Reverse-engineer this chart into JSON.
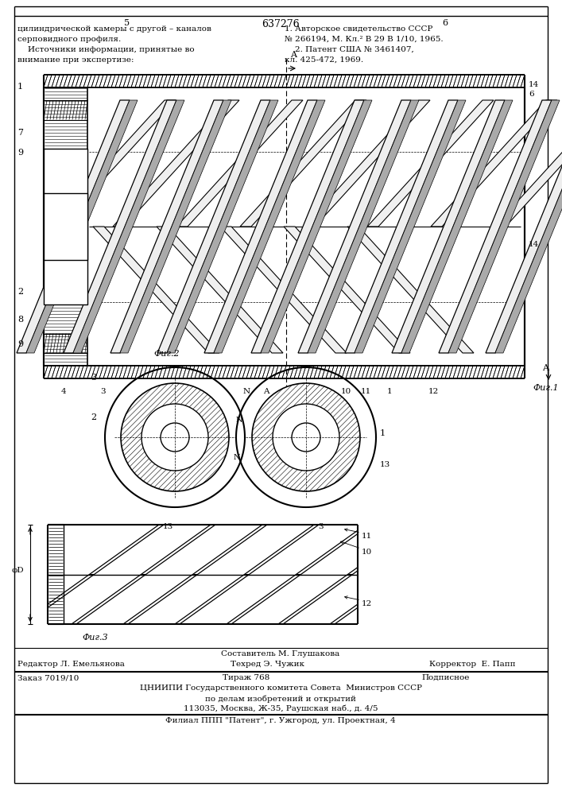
{
  "page_number_left": "5",
  "page_number_center": "637276",
  "page_number_right": "6",
  "top_left_text": [
    "цилиндрической камеры с другой – каналов",
    "серповидного профиля.",
    "    Источники информации, принятые во",
    "внимание при экспертизе:"
  ],
  "top_right_text": [
    "1. Авторское свидетельство СССР",
    "№ 266194, М. Кл.² В 29 В 1/10, 1965.",
    "    2. Патент США № 3461407,",
    "кл. 425-472, 1969."
  ],
  "fig1_label": "Фиг.1",
  "fig2_label": "Фиг.2",
  "fig3_label": "Фиг.3",
  "footer_line1": "Составитель М. Глушакова",
  "footer_line2_left": "Редактор Л. Емельянова",
  "footer_line2_mid": "Техред Э. Чужик",
  "footer_line2_right": "Корректор  Е. Папп",
  "footer_line3_left": "Заказ 7019/10",
  "footer_line3_mid": "Тираж 768",
  "footer_line3_right": "Подписное",
  "footer_line4": "ЦНИИПИ Государственного комитета Совета  Министров СССР",
  "footer_line5": "по делам изобретений и открытий",
  "footer_line6": "113035, Москва, Ж-35, Раушская наб., д. 4/5",
  "footer_line7": "Филиал ППП \"Патент\", г. Ужгород, ул. Проектная, 4",
  "bg_color": "#ffffff",
  "line_color": "#000000"
}
